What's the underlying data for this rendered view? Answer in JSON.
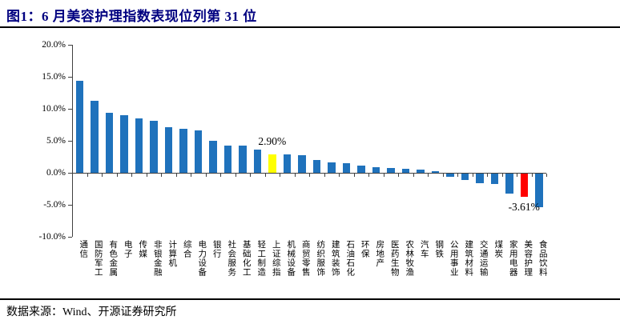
{
  "figure": {
    "title": "图1：6 月美容护理指数表现位列第 31 位",
    "source": "数据来源：Wind、开源证券研究所"
  },
  "chart_data": {
    "type": "bar",
    "title": "6月美容护理指数表现位列第31位",
    "xlabel": "",
    "ylabel": "",
    "ylim": [
      -10,
      20
    ],
    "grid": false,
    "legend": false,
    "y_tick_labels": [
      "20.0%",
      "15.0%",
      "10.0%",
      "5.0%",
      "0.0%",
      "-5.0%",
      "-10.0%"
    ],
    "y_tick_values": [
      20,
      15,
      10,
      5,
      0,
      -5,
      -10
    ],
    "categories": [
      "通信",
      "国防军工",
      "有色金属",
      "电子",
      "传媒",
      "非银金融",
      "计算机",
      "综合",
      "电力设备",
      "银行",
      "社会服务",
      "基础化工",
      "轻工制造",
      "上证综指",
      "机械设备",
      "商贸零售",
      "纺织服饰",
      "建筑装饰",
      "石油石化",
      "环保",
      "房地产",
      "医药生物",
      "农林牧渔",
      "汽车",
      "钢铁",
      "公用事业",
      "建筑材料",
      "交通运输",
      "煤炭",
      "家用电器",
      "美容护理",
      "食品饮料"
    ],
    "values": [
      14.4,
      11.2,
      9.4,
      9.0,
      8.5,
      8.1,
      7.1,
      6.9,
      6.6,
      5.0,
      4.3,
      4.2,
      3.6,
      2.9,
      2.85,
      2.7,
      2.0,
      1.6,
      1.5,
      1.1,
      0.85,
      0.7,
      0.65,
      0.45,
      0.25,
      -0.55,
      -1.0,
      -1.45,
      -1.6,
      -3.1,
      -3.61,
      -5.3
    ],
    "colors": {
      "default_bar": "#1f72bc",
      "highlight_yellow": "#ffff00",
      "highlight_red": "#ff0000",
      "axis": "#404040",
      "title": "#000080"
    },
    "highlighted_bars": {
      "上证综指": "highlight_yellow",
      "美容护理": "highlight_red"
    },
    "annotations": [
      {
        "category": "上证综指",
        "text": "2.90%",
        "position": "above"
      },
      {
        "category": "美容护理",
        "text": "-3.61%",
        "position": "below"
      }
    ]
  }
}
